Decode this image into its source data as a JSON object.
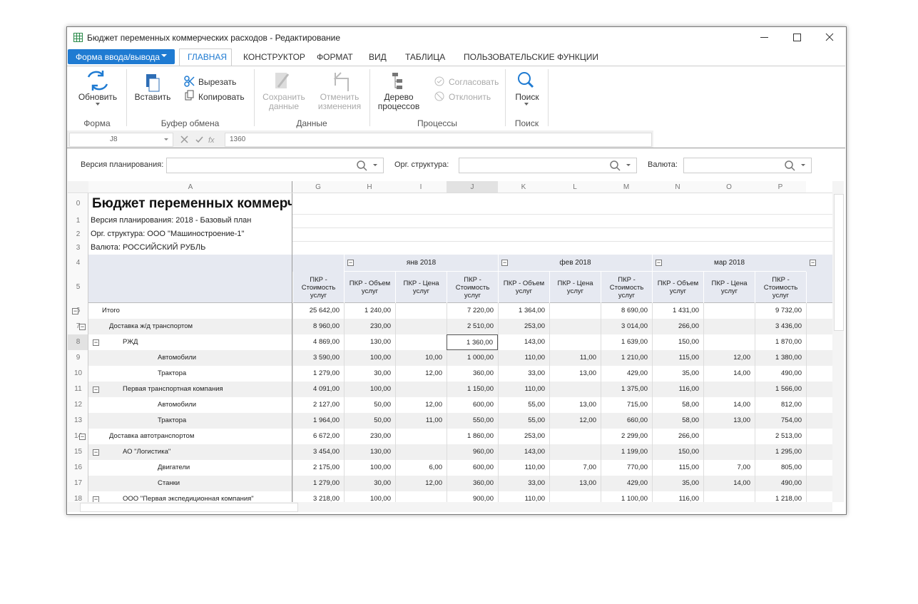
{
  "window": {
    "title": "Бюджет переменных коммерческих расходов - Редактирование"
  },
  "ribbon": {
    "file_button": "Форма ввода/вывода",
    "tabs": [
      "ГЛАВНАЯ",
      "КОНСТРУКТОР",
      "ФОРМАТ",
      "ВИД",
      "ТАБЛИЦА",
      "ПОЛЬЗОВАТЕЛЬСКИЕ ФУНКЦИИ"
    ],
    "groups": [
      {
        "label": "Форма",
        "buttons": [
          "Обновить"
        ]
      },
      {
        "label": "Буфер обмена",
        "buttons": [
          "Вставить",
          "Вырезать",
          "Копировать"
        ]
      },
      {
        "label": "Данные",
        "buttons": [
          "Сохранить данные",
          "Отменить изменения"
        ]
      },
      {
        "label": "Процессы",
        "buttons": [
          "Дерево процессов",
          "Согласовать",
          "Отклонить"
        ]
      },
      {
        "label": "Поиск",
        "buttons": [
          "Поиск"
        ]
      }
    ]
  },
  "formula_bar": {
    "cell": "J8",
    "value": 1360
  },
  "filters": [
    "Версия планирования:",
    "Орг. структура:",
    "Валюта:"
  ],
  "sheet": {
    "column_letters": [
      "A",
      "G",
      "H",
      "I",
      "J",
      "K",
      "L",
      "M",
      "N",
      "O",
      "P"
    ],
    "row_numbers": [
      0,
      1,
      2,
      3,
      4,
      5,
      6,
      7,
      8,
      9,
      10,
      11,
      12,
      13,
      14,
      15,
      16,
      17,
      18
    ],
    "title": "Бюджет переменных коммерческих расходов",
    "info": [
      "Версия планирования: 2018 - Базовый план",
      "Орг. структура: ООО \"Машиностроение-1\"",
      "Валюта: РОССИЙСКИЙ РУБЛЬ"
    ],
    "months": [
      "янв 2018",
      "фев 2018",
      "мар 2018"
    ],
    "measure_headers": [
      "ПКР - Стоимость услуг",
      "ПКР - Объем услуг",
      "ПКР - Цена услуг",
      "ПКР - Стоимость услуг",
      "ПКР - Объем услуг",
      "ПКР - Цена услуг",
      "ПКР - Стоимость услуг",
      "ПКР - Объем услуг",
      "ПКР - Цена услуг",
      "ПКР - Стоимость услуг"
    ],
    "rows": [
      {
        "label": "Итого",
        "values": [
          "25 642,00",
          "1 240,00",
          null,
          "7 220,00",
          "1 364,00",
          null,
          "8 690,00",
          "1 431,00",
          null,
          "9 732,00"
        ]
      },
      {
        "label": "Доставка ж/д транспортом",
        "values": [
          "8 960,00",
          "230,00",
          null,
          "2 510,00",
          "253,00",
          null,
          "3 014,00",
          "266,00",
          null,
          "3 436,00"
        ]
      },
      {
        "label": "РЖД",
        "values": [
          "4 869,00",
          "130,00",
          null,
          "1 360,00",
          "143,00",
          null,
          "1 639,00",
          "150,00",
          null,
          "1 870,00"
        ]
      },
      {
        "label": "Автомобили",
        "values": [
          "3 590,00",
          "100,00",
          "10,00",
          "1 000,00",
          "110,00",
          "11,00",
          "1 210,00",
          "115,00",
          "12,00",
          "1 380,00"
        ]
      },
      {
        "label": "Трактора",
        "values": [
          "1 279,00",
          "30,00",
          "12,00",
          "360,00",
          "33,00",
          "13,00",
          "429,00",
          "35,00",
          "14,00",
          "490,00"
        ]
      },
      {
        "label": "Первая транспортная компания",
        "values": [
          "4 091,00",
          "100,00",
          null,
          "1 150,00",
          "110,00",
          null,
          "1 375,00",
          "116,00",
          null,
          "1 566,00"
        ]
      },
      {
        "label": "Автомобили",
        "values": [
          "2 127,00",
          "50,00",
          "12,00",
          "600,00",
          "55,00",
          "13,00",
          "715,00",
          "58,00",
          "14,00",
          "812,00"
        ]
      },
      {
        "label": "Трактора",
        "values": [
          "1 964,00",
          "50,00",
          "11,00",
          "550,00",
          "55,00",
          "12,00",
          "660,00",
          "58,00",
          "13,00",
          "754,00"
        ]
      },
      {
        "label": "Доставка автотранспортом",
        "values": [
          "6 672,00",
          "230,00",
          null,
          "1 860,00",
          "253,00",
          null,
          "2 299,00",
          "266,00",
          null,
          "2 513,00"
        ]
      },
      {
        "label": "АО \"Логистика\"",
        "values": [
          "3 454,00",
          "130,00",
          null,
          "960,00",
          "143,00",
          null,
          "1 199,00",
          "150,00",
          null,
          "1 295,00"
        ]
      },
      {
        "label": "Двигатели",
        "values": [
          "2 175,00",
          "100,00",
          "6,00",
          "600,00",
          "110,00",
          "7,00",
          "770,00",
          "115,00",
          "7,00",
          "805,00"
        ]
      },
      {
        "label": "Станки",
        "values": [
          "1 279,00",
          "30,00",
          "12,00",
          "360,00",
          "33,00",
          "13,00",
          "429,00",
          "35,00",
          "14,00",
          "490,00"
        ]
      },
      {
        "label": "ООО \"Первая экспедиционная компания\"",
        "values": [
          "3 218,00",
          "100,00",
          null,
          "900,00",
          "110,00",
          null,
          "1 100,00",
          "116,00",
          null,
          "1 218,00"
        ]
      }
    ]
  }
}
